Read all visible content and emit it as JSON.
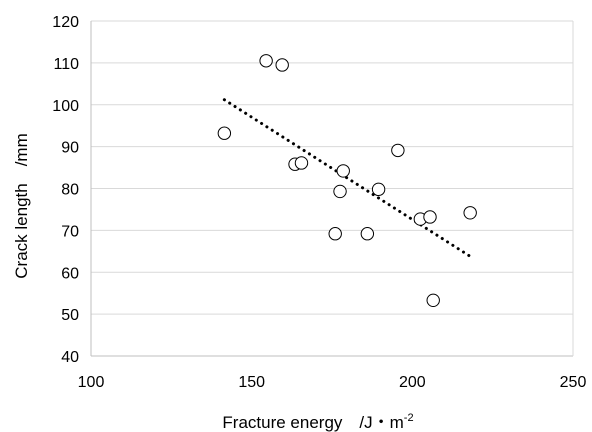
{
  "chart_data": {
    "type": "scatter",
    "xlabel": "Fracture energy　/J・m",
    "xlabel_superscript": "-2",
    "ylabel": "Crack length　/mm",
    "xlim": [
      100,
      250
    ],
    "ylim": [
      40,
      120
    ],
    "x_ticks": [
      100,
      150,
      200,
      250
    ],
    "y_ticks": [
      40,
      50,
      60,
      70,
      80,
      90,
      100,
      110,
      120
    ],
    "grid": "horizontal",
    "series": [
      {
        "marker": "open-circle",
        "points": [
          {
            "x": 141.5,
            "y": 93.2
          },
          {
            "x": 154.5,
            "y": 110.5
          },
          {
            "x": 159.5,
            "y": 109.5
          },
          {
            "x": 163.5,
            "y": 85.8
          },
          {
            "x": 165.5,
            "y": 86.1
          },
          {
            "x": 176.0,
            "y": 69.2
          },
          {
            "x": 177.5,
            "y": 79.3
          },
          {
            "x": 178.5,
            "y": 84.2
          },
          {
            "x": 186.0,
            "y": 69.2
          },
          {
            "x": 189.5,
            "y": 79.8
          },
          {
            "x": 195.5,
            "y": 89.1
          },
          {
            "x": 202.5,
            "y": 72.7
          },
          {
            "x": 205.5,
            "y": 73.2
          },
          {
            "x": 206.5,
            "y": 53.3
          },
          {
            "x": 218.0,
            "y": 74.2
          }
        ]
      }
    ],
    "trendline": {
      "type": "linear",
      "style": "dotted",
      "x": [
        141.5,
        218.0
      ],
      "y": [
        101.2,
        63.8
      ]
    }
  }
}
